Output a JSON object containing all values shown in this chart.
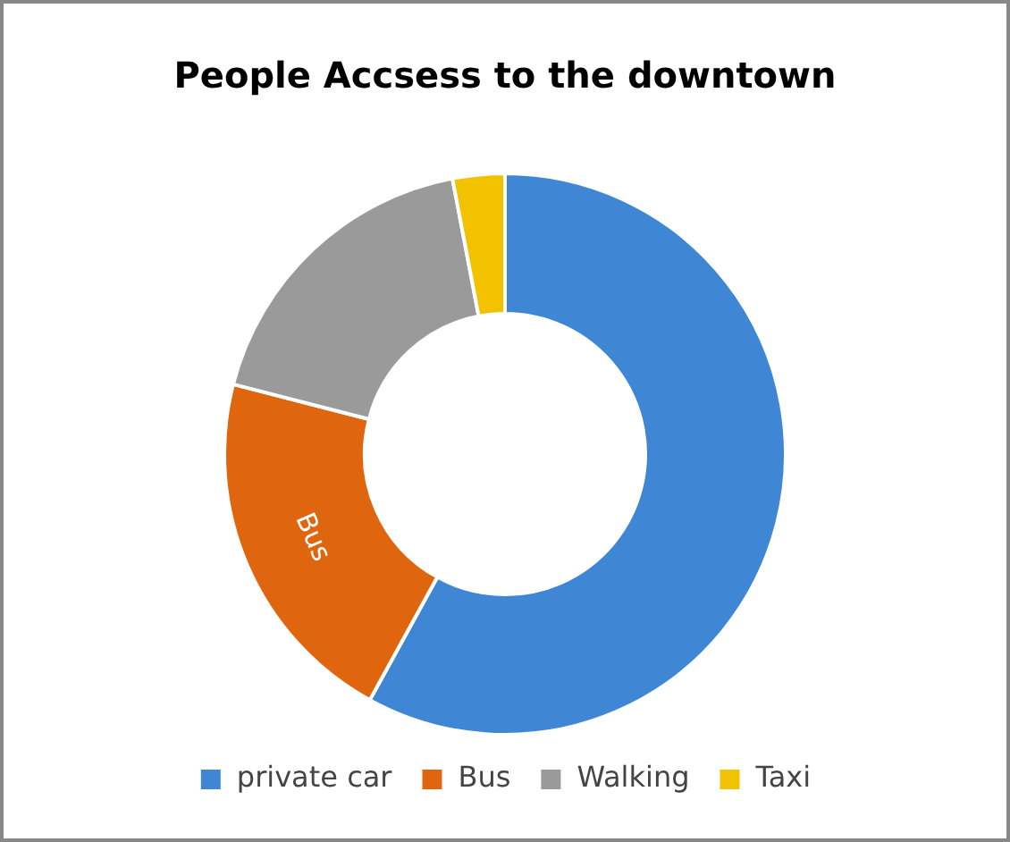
{
  "chart_data": {
    "type": "donut",
    "title": "People Accsess to the downtown",
    "categories": [
      "private car",
      "Bus",
      "Walking",
      "Taxi"
    ],
    "values": [
      58,
      21,
      18,
      3
    ],
    "colors": [
      "#3f86d4",
      "#e0650f",
      "#9a9a9a",
      "#f2c100"
    ],
    "value_labels": [
      null,
      "Bus",
      null,
      null
    ],
    "legend": "bottom"
  }
}
